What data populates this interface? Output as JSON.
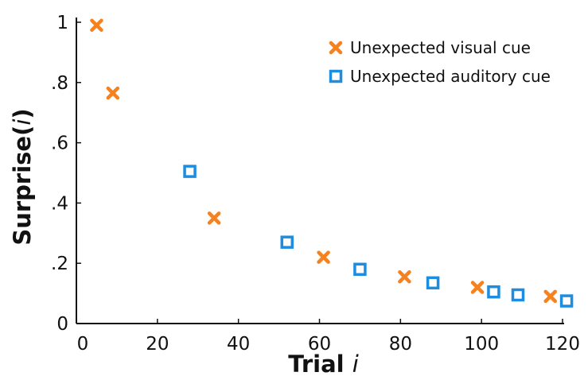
{
  "chart_data": {
    "type": "scatter",
    "xlabel": {
      "main": "Trial ",
      "italic": "i"
    },
    "ylabel": {
      "main": "Surprise(",
      "italic": "i",
      "end": ")"
    },
    "xlim": [
      0,
      120
    ],
    "ylim": [
      0,
      1
    ],
    "x_ticks": [
      0,
      20,
      40,
      60,
      80,
      100,
      120
    ],
    "x_tick_labels": [
      "0",
      "20",
      "40",
      "60",
      "80",
      "100",
      "120"
    ],
    "y_ticks": [
      0,
      0.2,
      0.4,
      0.6,
      0.8,
      1
    ],
    "y_tick_labels": [
      "0",
      ".2",
      ".4",
      ".6",
      ".8",
      "1"
    ],
    "grid": false,
    "legend_position": "top-right",
    "series": [
      {
        "name": "Unexpected visual cue",
        "marker": "x",
        "color": "#F5821F",
        "points": [
          [
            5,
            0.99
          ],
          [
            9,
            0.765
          ],
          [
            34,
            0.35
          ],
          [
            61,
            0.22
          ],
          [
            81,
            0.155
          ],
          [
            99,
            0.12
          ],
          [
            117,
            0.09
          ]
        ]
      },
      {
        "name": "Unexpected auditory cue",
        "marker": "square",
        "color": "#1C8DE0",
        "points": [
          [
            28,
            0.505
          ],
          [
            52,
            0.27
          ],
          [
            70,
            0.18
          ],
          [
            88,
            0.135
          ],
          [
            103,
            0.105
          ],
          [
            109,
            0.095
          ],
          [
            121,
            0.075
          ]
        ]
      }
    ]
  }
}
